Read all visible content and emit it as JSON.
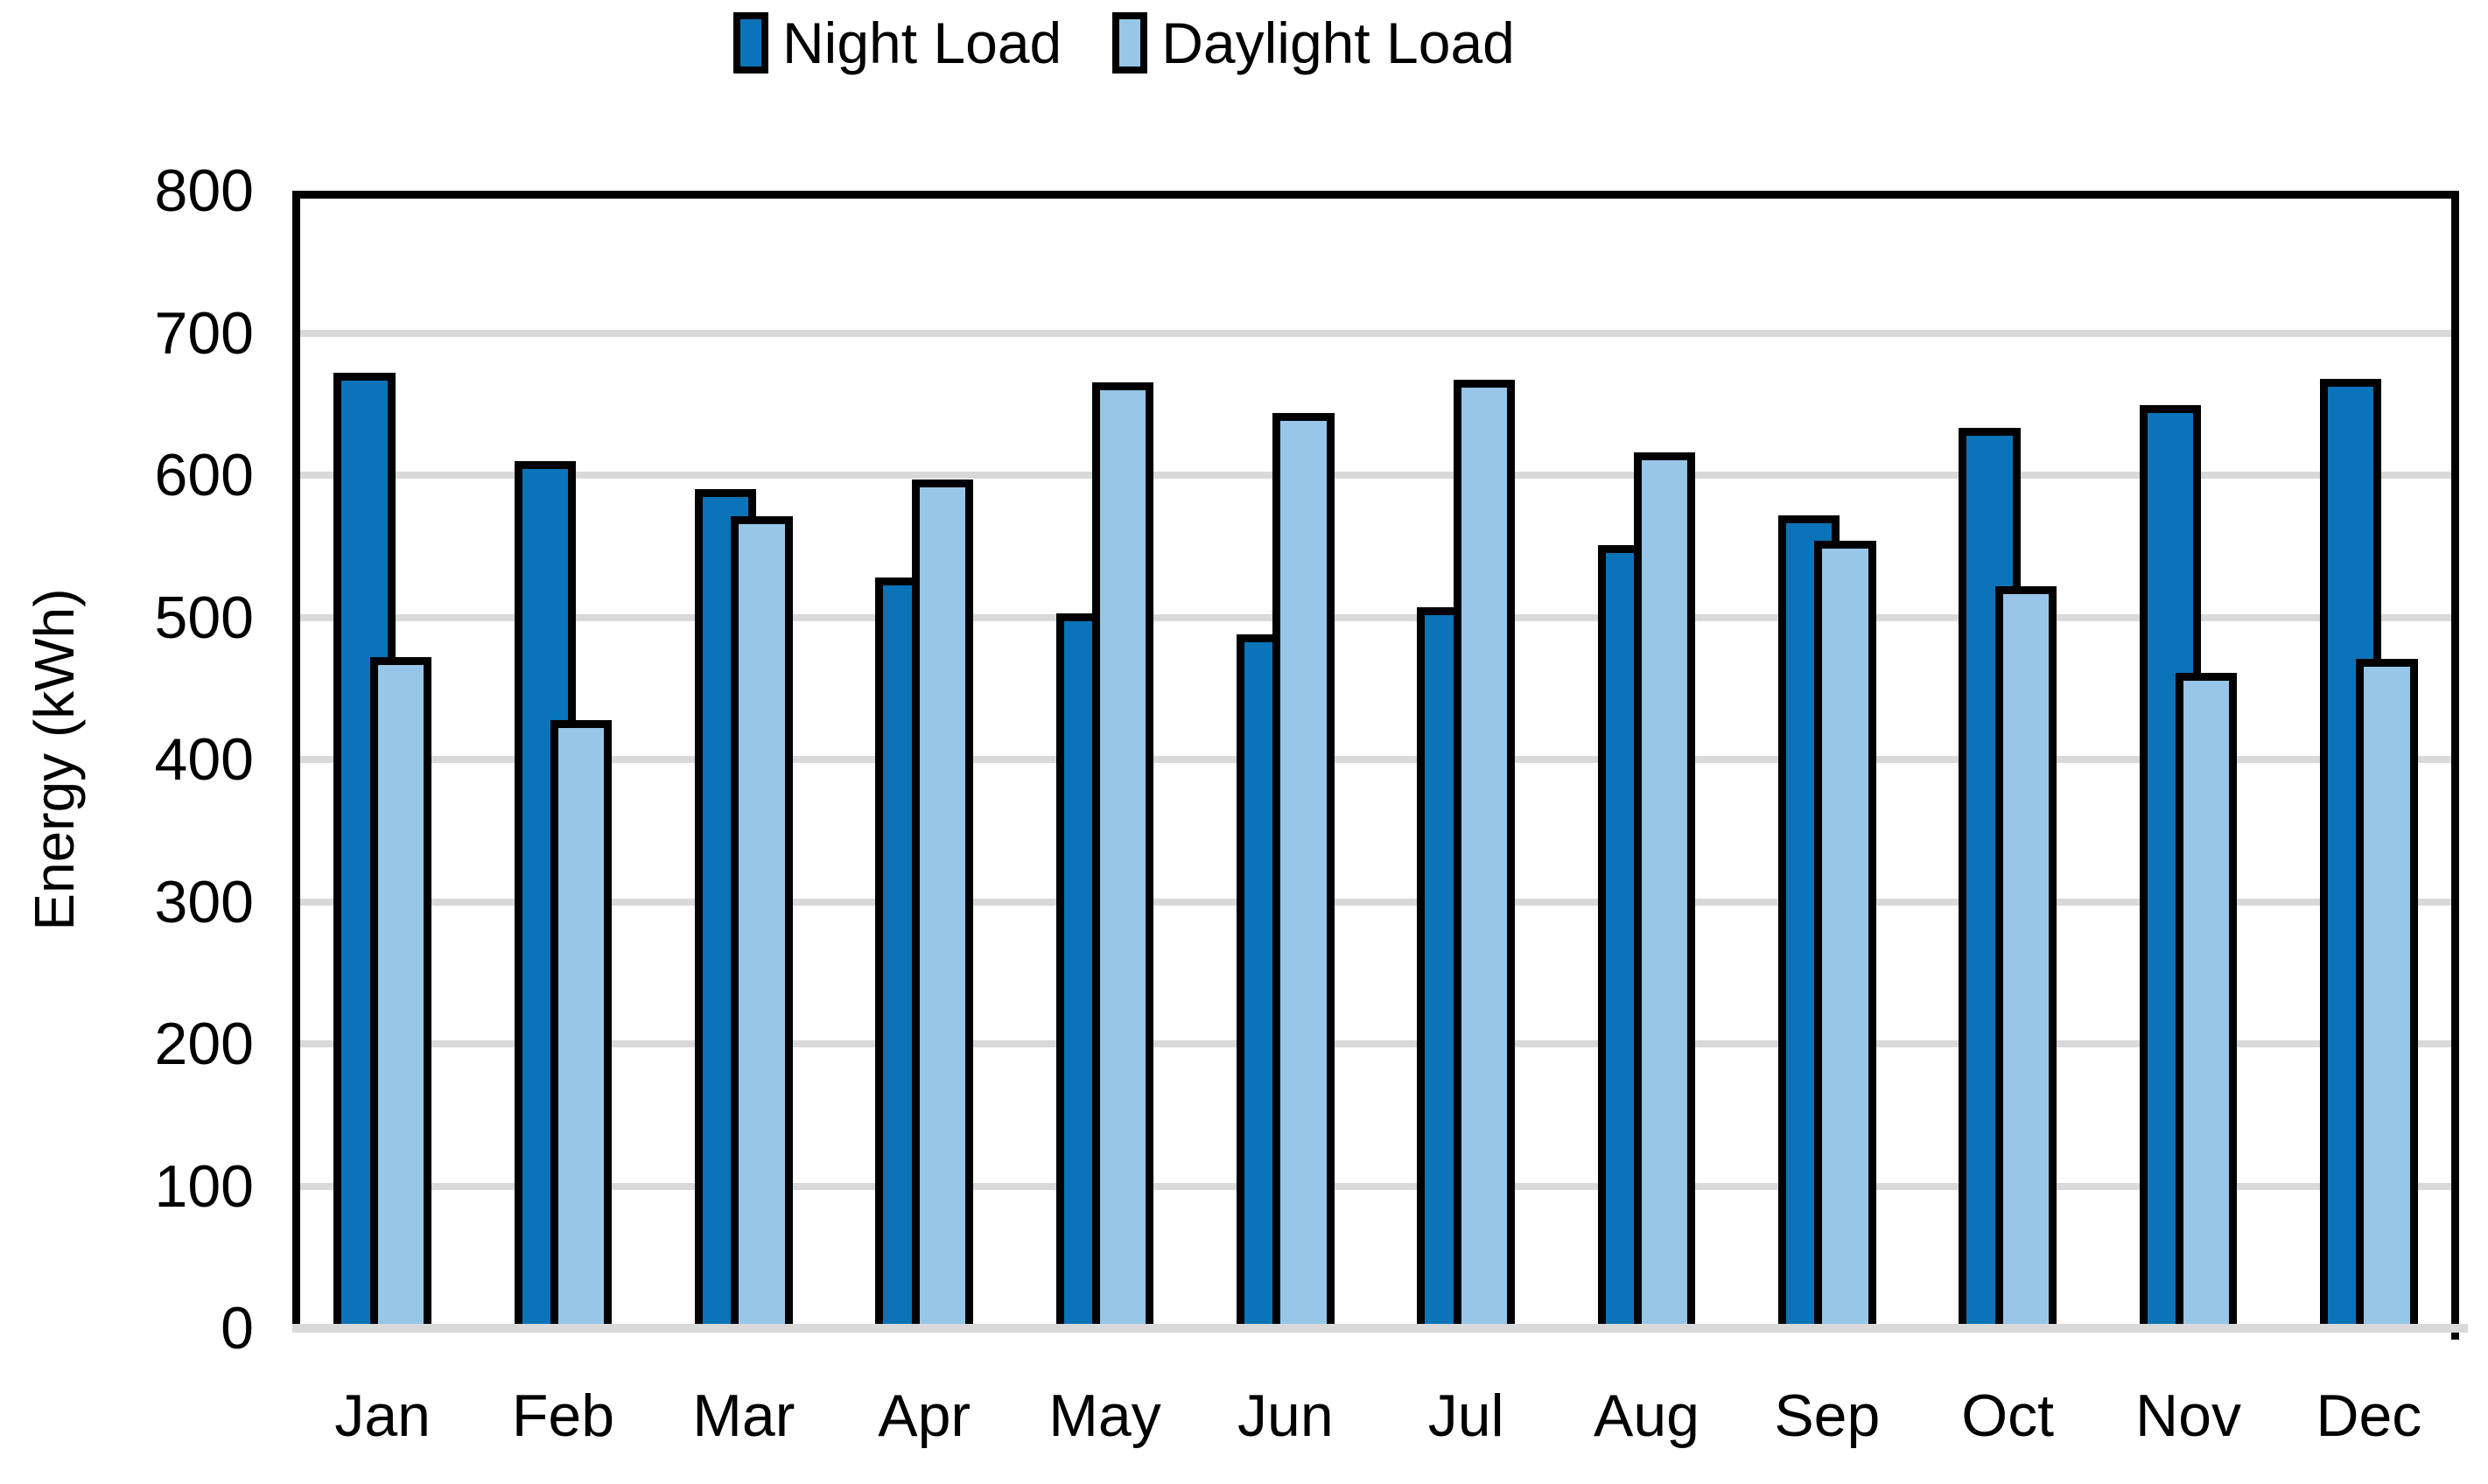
{
  "chart_data": {
    "type": "bar",
    "title": "",
    "categories": [
      "Jan",
      "Feb",
      "Mar",
      "Apr",
      "May",
      "Jun",
      "Jul",
      "Aug",
      "Sep",
      "Oct",
      "Nov",
      "Dec"
    ],
    "series": [
      {
        "name": "Night Load",
        "color": "#0b73b8",
        "values": [
          672,
          610,
          590,
          528,
          503,
          488,
          507,
          551,
          572,
          633,
          649,
          668
        ]
      },
      {
        "name": "Daylight Load",
        "color": "#97c6e9",
        "values": [
          472,
          428,
          571,
          597,
          665,
          644,
          667,
          616,
          554,
          522,
          461,
          471
        ]
      }
    ],
    "xlabel": "",
    "ylabel": "Energy (kWh)",
    "ylim": [
      0,
      800
    ],
    "yticks": [
      0,
      100,
      200,
      300,
      400,
      500,
      600,
      700,
      800
    ],
    "grid": true,
    "legend_position": "top",
    "bar_outline_color": "#000000",
    "gridline_color": "#d9d9d9",
    "plot_border_color": "#000000"
  }
}
